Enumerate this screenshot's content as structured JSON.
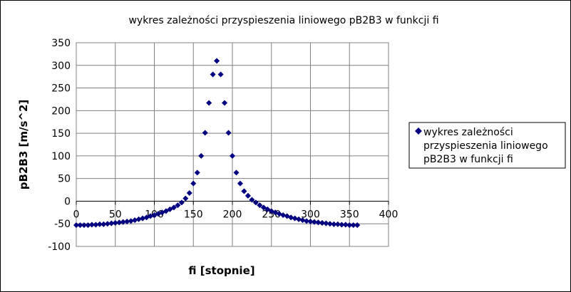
{
  "chart_data": {
    "type": "scatter",
    "title": "wykres zależności przyspieszenia liniowego pB2B3 w funkcji fi",
    "xlabel": "fi [stopnie]",
    "ylabel": "pB2B3 [m/s^2]",
    "xlim": [
      0,
      400
    ],
    "ylim": [
      -100,
      350
    ],
    "x_ticks": [
      "0",
      "50",
      "100",
      "150",
      "200",
      "250",
      "300",
      "350",
      "400"
    ],
    "y_ticks": [
      "350",
      "300",
      "250",
      "200",
      "150",
      "100",
      "50",
      "0",
      "-50",
      "-100"
    ],
    "grid": true,
    "legend_position": "right",
    "marker_color": "#000080",
    "series": [
      {
        "name": "wykres zależności przyspieszenia liniowego pB2B3 w funkcji fi",
        "x": [
          0,
          5,
          10,
          15,
          20,
          25,
          30,
          35,
          40,
          45,
          50,
          55,
          60,
          65,
          70,
          75,
          80,
          85,
          90,
          95,
          100,
          105,
          110,
          115,
          120,
          125,
          130,
          135,
          140,
          145,
          150,
          155,
          160,
          165,
          170,
          175,
          180,
          185,
          190,
          195,
          200,
          205,
          210,
          215,
          220,
          225,
          230,
          235,
          240,
          245,
          250,
          255,
          260,
          265,
          270,
          275,
          280,
          285,
          290,
          295,
          300,
          305,
          310,
          315,
          320,
          325,
          330,
          335,
          340,
          345,
          350,
          355,
          360
        ],
        "y": [
          -53,
          -53,
          -53,
          -53,
          -52,
          -52,
          -51,
          -51,
          -50,
          -49,
          -48,
          -47,
          -46,
          -45,
          -44,
          -42,
          -40,
          -38,
          -36,
          -33,
          -31,
          -28,
          -25,
          -22,
          -18,
          -14,
          -9,
          -3,
          6,
          18,
          39,
          63,
          100,
          151,
          217,
          280,
          310,
          280,
          217,
          151,
          100,
          63,
          39,
          22,
          12,
          3,
          -3,
          -9,
          -14,
          -18,
          -22,
          -25,
          -28,
          -31,
          -33,
          -36,
          -38,
          -40,
          -42,
          -44,
          -45,
          -46,
          -47,
          -48,
          -49,
          -50,
          -51,
          -51,
          -52,
          -52,
          -53,
          -53,
          -53
        ]
      }
    ]
  }
}
